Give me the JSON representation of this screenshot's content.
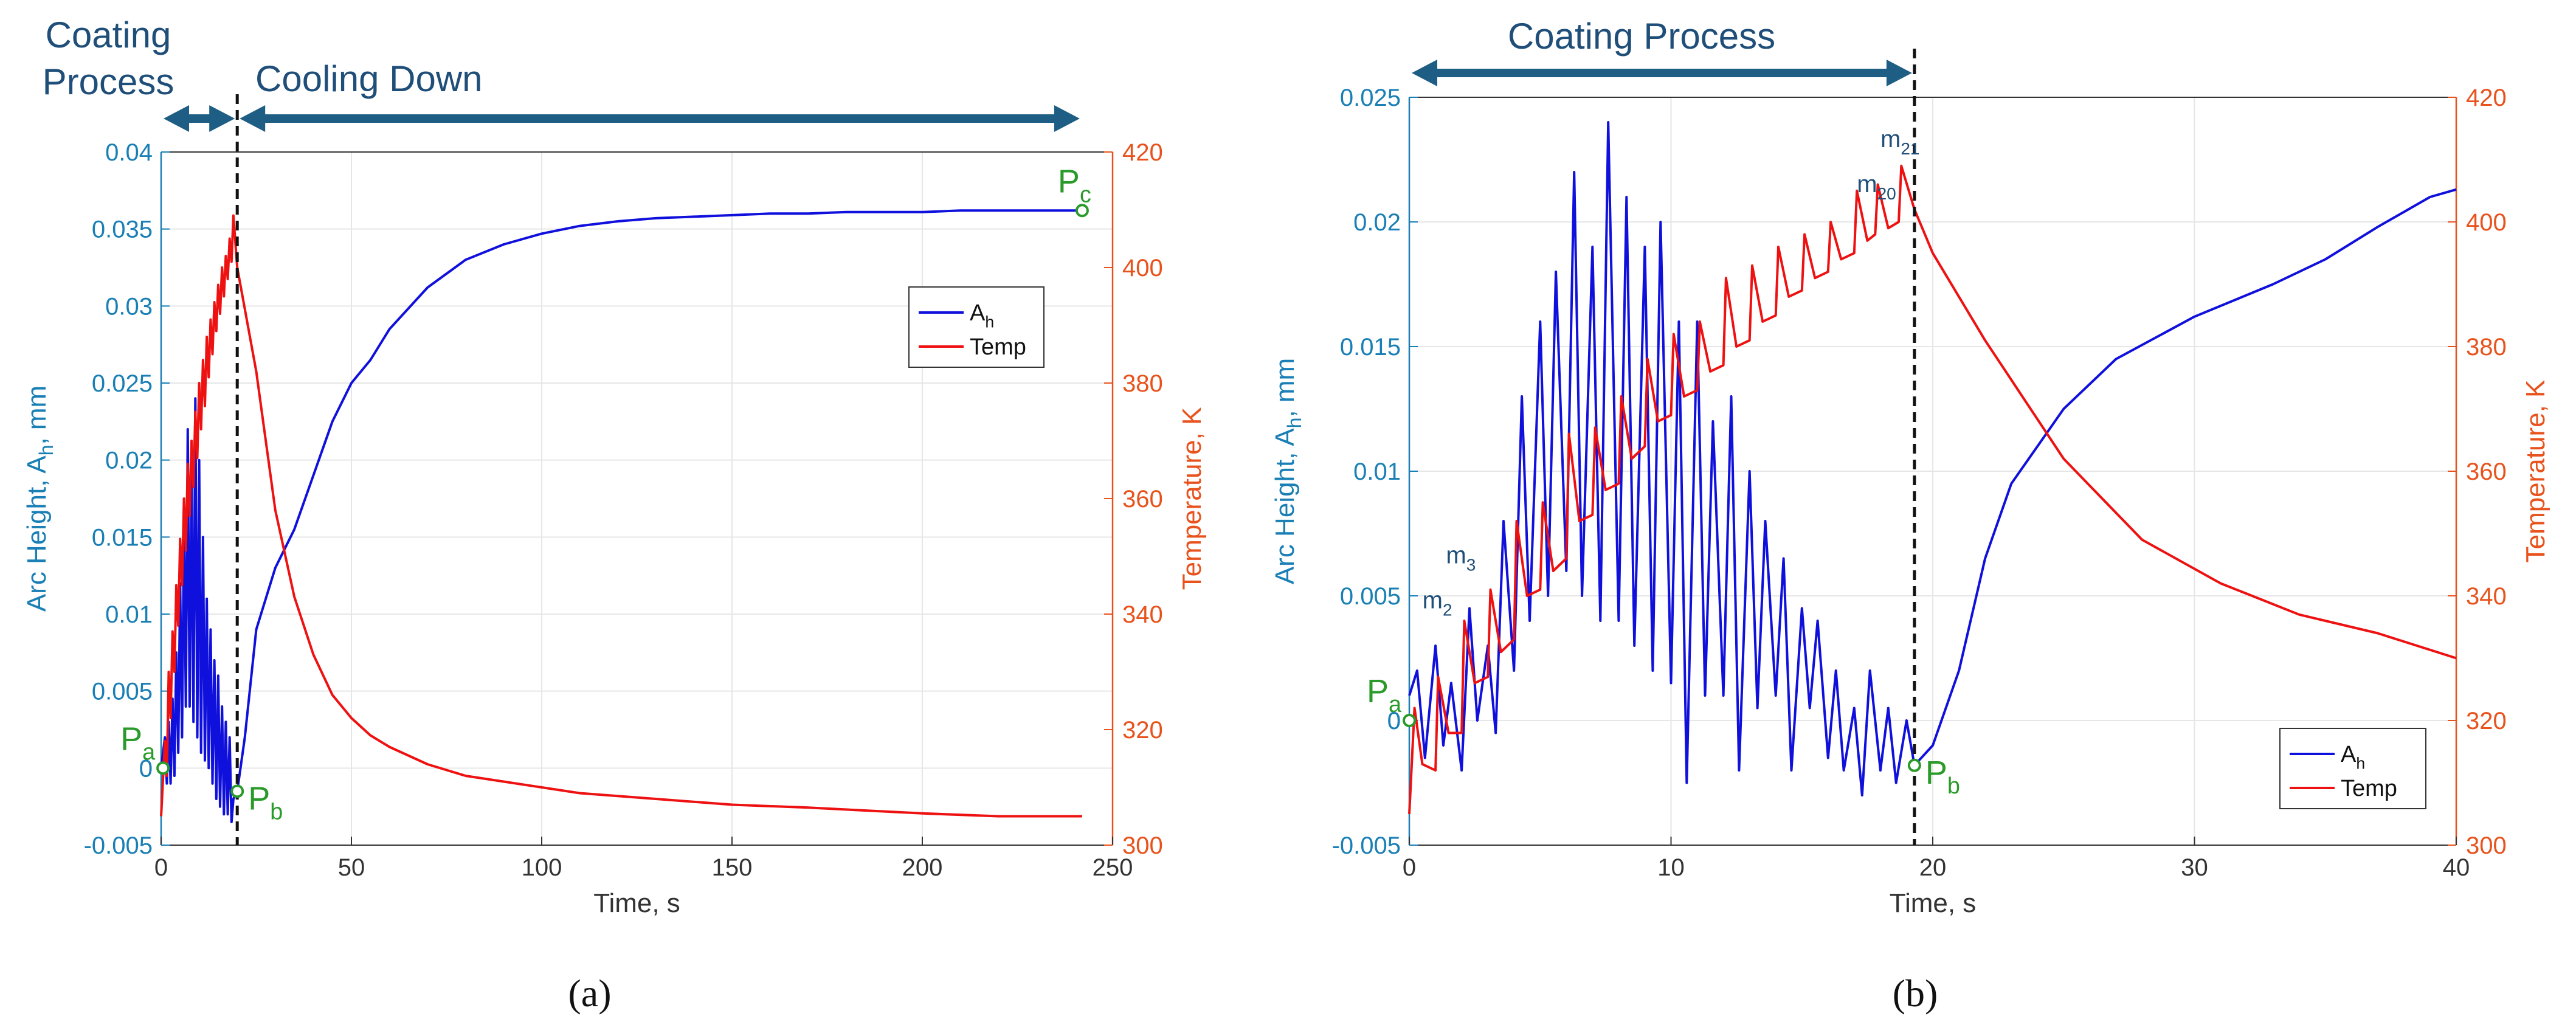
{
  "colors": {
    "left_axis": "#1a7fb5",
    "right_axis": "#e8521c",
    "ah_line": "#1010dd",
    "temp_line": "#ee1111",
    "arrow": "#1f5e84",
    "annotation": "#2a9a2a",
    "dark_text": "#1f4e79",
    "grid": "#e6e6e6"
  },
  "chart_data": [
    {
      "id": "a",
      "type": "line",
      "caption_letter": "a",
      "xlabel": "Time, s",
      "ylabel_left_pre": "Arc Height, A",
      "ylabel_left_sub": "h",
      "ylabel_left_post": ", mm",
      "ylabel_right": "Temperature, K",
      "xlim": [
        0,
        250
      ],
      "ylim_left": [
        -0.005,
        0.04
      ],
      "ylim_right": [
        300,
        420
      ],
      "xticks": [
        0,
        50,
        100,
        150,
        200,
        250
      ],
      "yticks_left": [
        "-0.005",
        "0",
        "0.005",
        "0.01",
        "0.015",
        "0.02",
        "0.025",
        "0.03",
        "0.035",
        "0.04"
      ],
      "yticks_left_values": [
        -0.005,
        0,
        0.005,
        0.01,
        0.015,
        0.02,
        0.025,
        0.03,
        0.035,
        0.04
      ],
      "yticks_right": [
        300,
        320,
        340,
        360,
        380,
        400,
        420
      ],
      "divider_x": 20,
      "phases": [
        {
          "label_line1": "Coating",
          "label_line2": "Process",
          "x_from": 0,
          "x_to": 20
        },
        {
          "label_line1": "Cooling Down",
          "label_line2": "",
          "x_from": 20,
          "x_to": 242
        }
      ],
      "legend": [
        {
          "name_main": "A",
          "name_sub": "h",
          "series": "ah"
        },
        {
          "name_main": "Temp",
          "name_sub": "",
          "series": "temp"
        }
      ],
      "points": [
        {
          "main": "P",
          "sub": "a",
          "x": 0.5,
          "y": 0.0
        },
        {
          "main": "P",
          "sub": "b",
          "x": 20,
          "y": -0.0015
        },
        {
          "main": "P",
          "sub": "c",
          "x": 242,
          "y": 0.0362
        }
      ],
      "series": [
        {
          "name": "A_h",
          "axis": "left",
          "x": [
            0,
            1,
            1.5,
            2,
            2.5,
            3,
            3.5,
            4,
            4.5,
            5,
            5.5,
            6,
            6.5,
            7,
            7.5,
            8,
            8.5,
            9,
            9.5,
            10,
            10.5,
            11,
            11.5,
            12,
            12.5,
            13,
            13.5,
            14,
            14.5,
            15,
            15.5,
            16,
            16.5,
            17,
            17.5,
            18,
            18.5,
            19,
            20,
            22,
            25,
            30,
            35,
            40,
            45,
            50,
            55,
            60,
            70,
            80,
            90,
            100,
            110,
            120,
            130,
            140,
            150,
            160,
            170,
            180,
            190,
            200,
            210,
            220,
            230,
            242
          ],
          "y": [
            0,
            0.002,
            -0.001,
            0.003,
            -0.001,
            0.0045,
            -0.0005,
            0.0075,
            0.001,
            0.012,
            0.002,
            0.016,
            0.004,
            0.022,
            0.004,
            0.019,
            0.003,
            0.024,
            0.002,
            0.02,
            0.001,
            0.015,
            0.0005,
            0.011,
            0.0,
            0.009,
            -0.001,
            0.007,
            -0.002,
            0.006,
            -0.0025,
            0.004,
            -0.003,
            0.003,
            -0.003,
            0.002,
            -0.0035,
            -0.002,
            -0.0015,
            0.002,
            0.009,
            0.013,
            0.0155,
            0.019,
            0.0225,
            0.025,
            0.0265,
            0.0285,
            0.0312,
            0.033,
            0.034,
            0.0347,
            0.0352,
            0.0355,
            0.0357,
            0.0358,
            0.0359,
            0.036,
            0.036,
            0.0361,
            0.0361,
            0.0361,
            0.0362,
            0.0362,
            0.0362,
            0.0362
          ]
        },
        {
          "name": "Temp",
          "axis": "right",
          "x": [
            0,
            1,
            1.5,
            2,
            2.5,
            3,
            3.5,
            4,
            4.5,
            5,
            5.5,
            6,
            6.5,
            7,
            7.5,
            8,
            8.5,
            9,
            9.5,
            10,
            10.5,
            11,
            11.5,
            12,
            12.5,
            13,
            13.5,
            14,
            14.5,
            15,
            15.5,
            16,
            16.5,
            17,
            17.5,
            18,
            18.5,
            19,
            20,
            25,
            30,
            35,
            40,
            45,
            50,
            55,
            60,
            70,
            80,
            90,
            100,
            110,
            120,
            130,
            150,
            170,
            200,
            220,
            242
          ],
          "y": [
            305,
            318,
            312,
            330,
            322,
            337,
            330,
            345,
            338,
            353,
            345,
            360,
            351,
            366,
            357,
            370,
            362,
            375,
            367,
            380,
            372,
            384,
            376,
            388,
            381,
            391,
            385,
            394,
            389,
            397,
            392,
            400,
            395,
            402,
            398,
            405,
            401,
            409,
            400,
            382,
            358,
            343,
            333,
            326,
            322,
            319,
            317,
            314,
            312,
            311,
            310,
            309,
            308.5,
            308,
            307,
            306.5,
            305.5,
            305,
            305
          ]
        }
      ]
    },
    {
      "id": "b",
      "type": "line",
      "caption_letter": "b",
      "xlabel": "Time, s",
      "ylabel_left_pre": "Arc Height, A",
      "ylabel_left_sub": "h",
      "ylabel_left_post": ", mm",
      "ylabel_right": "Temperature, K",
      "xlim": [
        0,
        40
      ],
      "ylim_left": [
        -0.005,
        0.025
      ],
      "ylim_right": [
        300,
        420
      ],
      "xticks": [
        0,
        10,
        20,
        30,
        40
      ],
      "yticks_left": [
        "-0.005",
        "0",
        "0.005",
        "0.01",
        "0.015",
        "0.02",
        "0.025"
      ],
      "yticks_left_values": [
        -0.005,
        0,
        0.005,
        0.01,
        0.015,
        0.02,
        0.025
      ],
      "yticks_right": [
        300,
        320,
        340,
        360,
        380,
        400,
        420
      ],
      "divider_x": 19.3,
      "phases": [
        {
          "label_line1": "Coating Process",
          "label_line2": "",
          "x_from": 0,
          "x_to": 19.3
        }
      ],
      "legend": [
        {
          "name_main": "A",
          "name_sub": "h",
          "series": "ah"
        },
        {
          "name_main": "Temp",
          "name_sub": "",
          "series": "temp"
        }
      ],
      "points": [
        {
          "main": "P",
          "sub": "a",
          "x": 0,
          "y": 0.0
        },
        {
          "main": "P",
          "sub": "b",
          "x": 19.3,
          "y": -0.0018
        }
      ],
      "markers": [
        {
          "main": "m",
          "sub": "2",
          "x": 1.2,
          "y": 0.0045
        },
        {
          "main": "m",
          "sub": "3",
          "x": 2.1,
          "y": 0.0063
        },
        {
          "main": "m",
          "sub": "20",
          "x": 17.8,
          "y": 0.0212
        },
        {
          "main": "m",
          "sub": "21",
          "x": 18.7,
          "y": 0.023
        }
      ],
      "series": [
        {
          "name": "A_h",
          "axis": "left",
          "x": [
            0,
            0.3,
            0.6,
            1.0,
            1.3,
            1.6,
            2.0,
            2.3,
            2.6,
            3.0,
            3.3,
            3.6,
            4.0,
            4.3,
            4.6,
            5.0,
            5.3,
            5.6,
            6.0,
            6.3,
            6.6,
            7.0,
            7.3,
            7.6,
            8.0,
            8.3,
            8.6,
            9.0,
            9.3,
            9.6,
            10.0,
            10.3,
            10.6,
            11.0,
            11.3,
            11.6,
            12.0,
            12.3,
            12.6,
            13.0,
            13.3,
            13.6,
            14.0,
            14.3,
            14.6,
            15.0,
            15.3,
            15.6,
            16.0,
            16.3,
            16.6,
            17.0,
            17.3,
            17.6,
            18.0,
            18.3,
            18.6,
            19.0,
            19.3,
            20.0,
            21.0,
            22.0,
            23.0,
            25.0,
            27.0,
            30.0,
            33.0,
            35.0,
            37.0,
            39.0,
            40.0
          ],
          "y": [
            0.001,
            0.002,
            -0.0015,
            0.003,
            -0.001,
            0.0015,
            -0.002,
            0.0045,
            0.0,
            0.003,
            -0.0005,
            0.008,
            0.002,
            0.013,
            0.004,
            0.016,
            0.005,
            0.018,
            0.006,
            0.022,
            0.005,
            0.019,
            0.004,
            0.024,
            0.004,
            0.021,
            0.003,
            0.019,
            0.002,
            0.02,
            0.0015,
            0.016,
            -0.0025,
            0.016,
            0.001,
            0.012,
            0.001,
            0.013,
            -0.002,
            0.01,
            0.0005,
            0.008,
            0.001,
            0.0065,
            -0.002,
            0.0045,
            0.0005,
            0.004,
            -0.0015,
            0.002,
            -0.002,
            0.0005,
            -0.003,
            0.002,
            -0.002,
            0.0005,
            -0.0025,
            0.0,
            -0.0018,
            -0.001,
            0.002,
            0.0065,
            0.0095,
            0.0125,
            0.0145,
            0.0162,
            0.0175,
            0.0185,
            0.0198,
            0.021,
            0.0213
          ]
        },
        {
          "name": "Temp",
          "axis": "right",
          "x": [
            0,
            0.2,
            0.5,
            1.0,
            1.1,
            1.5,
            2.0,
            2.1,
            2.5,
            3.0,
            3.1,
            3.5,
            4.0,
            4.1,
            4.5,
            5.0,
            5.1,
            5.5,
            6.0,
            6.1,
            6.5,
            7.0,
            7.1,
            7.5,
            8.0,
            8.1,
            8.5,
            9.0,
            9.1,
            9.5,
            10.0,
            10.1,
            10.5,
            11.0,
            11.1,
            11.5,
            12.0,
            12.1,
            12.5,
            13.0,
            13.1,
            13.5,
            14.0,
            14.1,
            14.5,
            15.0,
            15.1,
            15.5,
            16.0,
            16.1,
            16.5,
            17.0,
            17.1,
            17.5,
            17.8,
            17.9,
            18.3,
            18.7,
            18.8,
            19.3,
            20.0,
            22.0,
            25.0,
            28.0,
            31.0,
            34.0,
            37.0,
            40.0
          ],
          "y": [
            305,
            322,
            313,
            312,
            327,
            318,
            318,
            336,
            326,
            327,
            341,
            331,
            333,
            352,
            340,
            341,
            355,
            344,
            346,
            366,
            352,
            353,
            367,
            357,
            358,
            372,
            362,
            364,
            378,
            368,
            369,
            382,
            372,
            373,
            384,
            376,
            377,
            391,
            380,
            381,
            393,
            384,
            385,
            396,
            388,
            389,
            398,
            391,
            392,
            400,
            394,
            395,
            405,
            397,
            398,
            406,
            399,
            400,
            409,
            402,
            395,
            381,
            362,
            349,
            342,
            337,
            334,
            330
          ]
        }
      ]
    }
  ],
  "captions": [
    "(a)",
    "(b)"
  ]
}
